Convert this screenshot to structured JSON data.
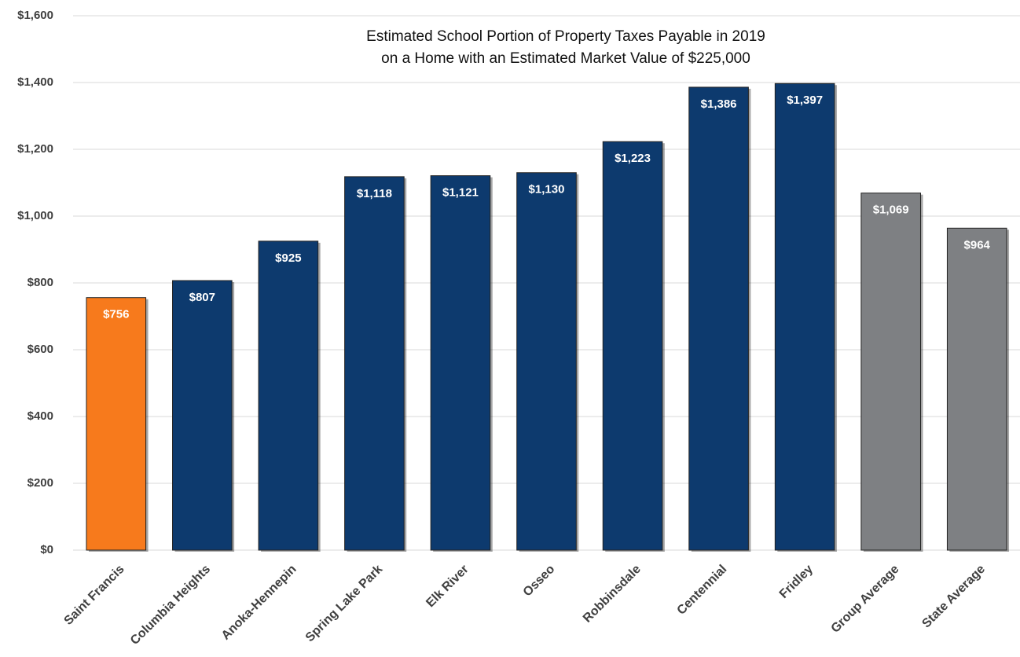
{
  "chart_data": {
    "type": "bar",
    "title": [
      "Estimated School Portion of Property Taxes Payable in 2019",
      "on a Home with an Estimated Market Value of $225,000"
    ],
    "categories": [
      "Saint Francis",
      "Columbia Heights",
      "Anoka-Hennepin",
      "Spring Lake Park",
      "Elk River",
      "Osseo",
      "Robbinsdale",
      "Centennial",
      "Fridley",
      "Group Average",
      "State Average"
    ],
    "values": [
      756,
      807,
      925,
      1118,
      1121,
      1130,
      1223,
      1386,
      1397,
      1069,
      964
    ],
    "value_labels": [
      "$756",
      "$807",
      "$925",
      "$1,118",
      "$1,121",
      "$1,130",
      "$1,223",
      "$1,386",
      "$1,397",
      "$1,069",
      "$964"
    ],
    "colors": [
      "#f77a1c",
      "#0d3a6e",
      "#0d3a6e",
      "#0d3a6e",
      "#0d3a6e",
      "#0d3a6e",
      "#0d3a6e",
      "#0d3a6e",
      "#0d3a6e",
      "#7e8083",
      "#7e8083"
    ],
    "ylim": [
      0,
      1600
    ],
    "yticks": [
      {
        "value": 0,
        "label": "$0"
      },
      {
        "value": 200,
        "label": "$200"
      },
      {
        "value": 400,
        "label": "$400"
      },
      {
        "value": 600,
        "label": "$600"
      },
      {
        "value": 800,
        "label": "$800"
      },
      {
        "value": 1000,
        "label": "$1,000"
      },
      {
        "value": 1200,
        "label": "$1,200"
      },
      {
        "value": 1400,
        "label": "$1,400"
      },
      {
        "value": 1600,
        "label": "$1,600"
      }
    ],
    "grid": true
  }
}
